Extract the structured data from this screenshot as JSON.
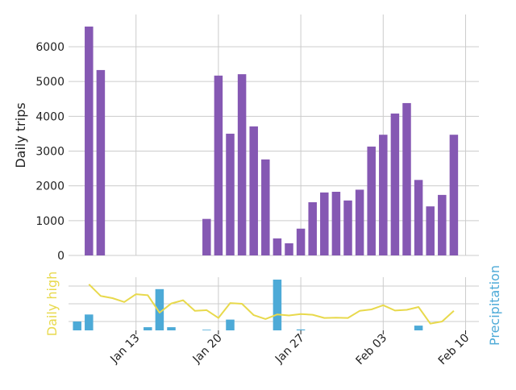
{
  "colors": {
    "trips_bar": "#8558b3",
    "precip_bar": "#4daad7",
    "temp_line": "#e8d94c",
    "grid": "#cccccc",
    "text": "#222222",
    "high_label": "#e8d94c",
    "precip_label": "#4daad7"
  },
  "chart_data": [
    {
      "type": "bar",
      "ylabel": "Daily trips",
      "ylim": [
        0,
        6900
      ],
      "yticks": [
        0,
        1000,
        2000,
        3000,
        4000,
        5000,
        6000
      ],
      "grid": true,
      "x": [
        "2021-01-08",
        "2021-01-09",
        "2021-01-10",
        "2021-01-11",
        "2021-01-12",
        "2021-01-13",
        "2021-01-14",
        "2021-01-15",
        "2021-01-16",
        "2021-01-17",
        "2021-01-18",
        "2021-01-19",
        "2021-01-20",
        "2021-01-21",
        "2021-01-22",
        "2021-01-23",
        "2021-01-24",
        "2021-01-25",
        "2021-01-26",
        "2021-01-27",
        "2021-01-28",
        "2021-01-29",
        "2021-01-30",
        "2021-01-31",
        "2021-02-01",
        "2021-02-02",
        "2021-02-03",
        "2021-02-04",
        "2021-02-05",
        "2021-02-06",
        "2021-02-07",
        "2021-02-08",
        "2021-02-09"
      ],
      "values": [
        null,
        6580,
        5330,
        0,
        0,
        0,
        0,
        0,
        0,
        0,
        0,
        1050,
        5170,
        3500,
        5210,
        3710,
        2760,
        490,
        350,
        770,
        1530,
        1810,
        1830,
        1580,
        1890,
        3130,
        3470,
        4080,
        4380,
        2170,
        1410,
        1740,
        3470
      ]
    },
    {
      "type": "line",
      "series": [
        {
          "name": "Daily high",
          "x": [
            "2021-01-09",
            "2021-01-10",
            "2021-01-11",
            "2021-01-12",
            "2021-01-13",
            "2021-01-14",
            "2021-01-15",
            "2021-01-16",
            "2021-01-17",
            "2021-01-18",
            "2021-01-19",
            "2021-01-20",
            "2021-01-21",
            "2021-01-22",
            "2021-01-23",
            "2021-01-24",
            "2021-01-25",
            "2021-01-26",
            "2021-01-27",
            "2021-01-28",
            "2021-01-29",
            "2021-01-30",
            "2021-01-31",
            "2021-02-01",
            "2021-02-02",
            "2021-02-03",
            "2021-02-04",
            "2021-02-05",
            "2021-02-06",
            "2021-02-07",
            "2021-02-08",
            "2021-02-09"
          ],
          "values": [
            10.5,
            7.2,
            6.6,
            5.5,
            7.7,
            7.4,
            2.5,
            5.1,
            6.0,
            3.0,
            3.2,
            1.0,
            5.2,
            5.0,
            1.8,
            0.7,
            2.0,
            1.7,
            2.1,
            1.9,
            1.0,
            1.1,
            1.0,
            3.0,
            3.4,
            4.6,
            3.1,
            3.3,
            4.1,
            -0.6,
            0.0,
            3.0
          ]
        }
      ]
    },
    {
      "type": "bar",
      "series": [
        {
          "name": "Precipitation",
          "x": [
            "2021-01-08",
            "2021-01-09",
            "2021-01-10",
            "2021-01-11",
            "2021-01-12",
            "2021-01-13",
            "2021-01-14",
            "2021-01-15",
            "2021-01-16",
            "2021-01-17",
            "2021-01-18",
            "2021-01-19",
            "2021-01-20",
            "2021-01-21",
            "2021-01-22",
            "2021-01-23",
            "2021-01-24",
            "2021-01-25",
            "2021-01-26",
            "2021-01-27",
            "2021-01-28",
            "2021-01-29",
            "2021-01-30",
            "2021-01-31",
            "2021-02-01",
            "2021-02-02",
            "2021-02-03",
            "2021-02-04",
            "2021-02-05",
            "2021-02-06",
            "2021-02-07",
            "2021-02-08",
            "2021-02-09"
          ],
          "values": [
            2.8,
            5.0,
            0,
            0,
            0,
            0,
            1.0,
            13.0,
            1.0,
            0,
            0,
            0.2,
            0,
            3.4,
            0,
            0,
            0,
            16.0,
            0,
            0.3,
            0,
            0,
            0,
            0,
            0,
            0,
            0,
            0,
            0,
            1.5,
            0,
            0,
            0
          ]
        }
      ]
    }
  ],
  "x_axis": {
    "ticks": [
      {
        "date": "2021-01-13",
        "label": "Jan 13"
      },
      {
        "date": "2021-01-20",
        "label": "Jan 20"
      },
      {
        "date": "2021-01-27",
        "label": "Jan 27"
      },
      {
        "date": "2021-02-03",
        "label": "Feb 03"
      },
      {
        "date": "2021-02-10",
        "label": "Feb 10"
      }
    ]
  },
  "labels": {
    "top_ylabel": "Daily trips",
    "left_ylabel": "Daily high",
    "right_ylabel": "Precipitation"
  }
}
